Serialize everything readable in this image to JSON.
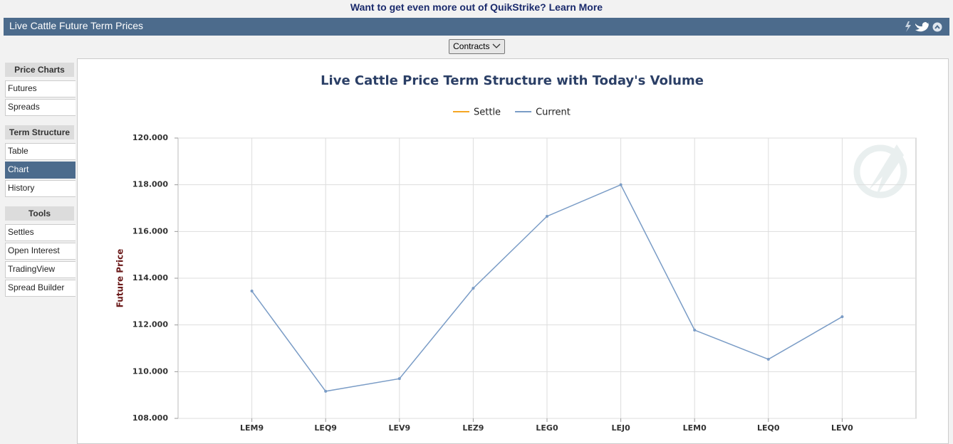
{
  "banner": {
    "text": "Want to get even more out of QuikStrike?",
    "link": "Learn More"
  },
  "header": {
    "title": "Live Cattle Future Term Prices"
  },
  "toolbar": {
    "dropdown": "Contracts"
  },
  "sidebar": [
    {
      "heading": "Price Charts",
      "items": [
        {
          "label": "Futures"
        },
        {
          "label": "Spreads"
        }
      ]
    },
    {
      "heading": "Term Structure",
      "items": [
        {
          "label": "Table"
        },
        {
          "label": "Chart",
          "active": true
        },
        {
          "label": "History"
        }
      ]
    },
    {
      "heading": "Tools",
      "items": [
        {
          "label": "Settles"
        },
        {
          "label": "Open Interest"
        },
        {
          "label": "TradingView"
        },
        {
          "label": "Spread Builder"
        }
      ]
    }
  ],
  "chart_data": {
    "type": "line",
    "title": "Live Cattle Price Term Structure with Today's Volume",
    "y_label": "Future Price",
    "categories": [
      "LEM9",
      "LEQ9",
      "LEV9",
      "LEZ9",
      "LEG0",
      "LEJ0",
      "LEM0",
      "LEQ0",
      "LEV0"
    ],
    "series": [
      {
        "name": "Settle",
        "color": "#f5a623",
        "values": [
          null,
          null,
          null,
          null,
          null,
          null,
          null,
          null,
          null
        ]
      },
      {
        "name": "Current",
        "color": "#7a9cc6",
        "values": [
          113.45,
          109.16,
          109.7,
          113.57,
          116.65,
          118.0,
          111.78,
          110.53,
          112.35
        ]
      }
    ],
    "ylim": [
      108,
      120
    ],
    "yticks": [
      {
        "value": 108,
        "label": "108.000"
      },
      {
        "value": 110,
        "label": "110.000"
      },
      {
        "value": 112,
        "label": "112.000"
      },
      {
        "value": 114,
        "label": "114.000"
      },
      {
        "value": 116,
        "label": "116.000"
      },
      {
        "value": 118,
        "label": "118.000"
      },
      {
        "value": 120,
        "label": "120.000"
      }
    ],
    "grid": true,
    "legend": "top"
  }
}
